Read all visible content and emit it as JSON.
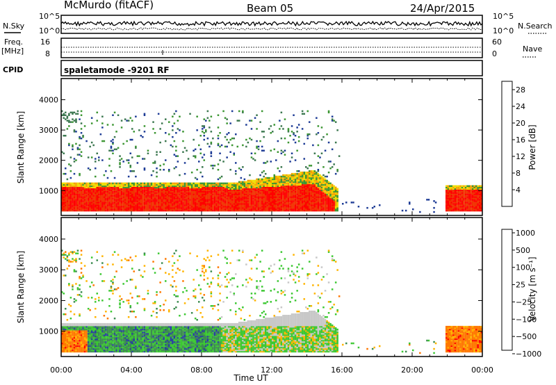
{
  "header": {
    "station": "McMurdo (fitACF)",
    "beam": "Beam 05",
    "date": "24/Apr/2015"
  },
  "top_panels": {
    "nsky_label": "N.Sky",
    "nsearch_label": "N.Search",
    "noise_ticks": [
      "10^5",
      "10^0"
    ],
    "freq_label": "Freq.",
    "freq_unit": "[MHz]",
    "freq_ticks": [
      "16",
      "8"
    ],
    "nave_label": "Nave",
    "nave_ticks": [
      "60",
      "0"
    ],
    "cpid_label": "CPID",
    "cpid_text": "spaletamode -9201 RF"
  },
  "colors": {
    "power": [
      "#0000ff",
      "#1e3c96",
      "#3c7850",
      "#3c9632",
      "#f0dc00",
      "#f5a000",
      "#f06e00",
      "#f03200",
      "#ff0000"
    ],
    "velocity": [
      "#ff0000",
      "#ff7800",
      "#ffb400",
      "#c8c8c8",
      "#3cc832",
      "#3c8c50",
      "#2840a0"
    ]
  },
  "chart_data": [
    {
      "type": "heatmap",
      "name": "power",
      "ylabel": "Slant Range [km]",
      "xlabel": "Time UT",
      "x_ticks": [
        "00:00",
        "04:00",
        "08:00",
        "12:00",
        "16:00",
        "20:00",
        "00:00"
      ],
      "y_ticks": [
        "1000",
        "2000",
        "3000",
        "4000"
      ],
      "ylim": [
        180,
        4700
      ],
      "colorbar": {
        "label": "Power [dB]",
        "ticks": [
          "4",
          "8",
          "12",
          "16",
          "20",
          "24",
          "28"
        ],
        "range": [
          0,
          30
        ]
      }
    },
    {
      "type": "heatmap",
      "name": "velocity",
      "ylabel": "Slant Range [km]",
      "xlabel": "Time UT",
      "x_ticks": [
        "00:00",
        "04:00",
        "08:00",
        "12:00",
        "16:00",
        "20:00",
        "00:00"
      ],
      "y_ticks": [
        "1000",
        "2000",
        "3000",
        "4000"
      ],
      "ylim": [
        180,
        4700
      ],
      "colorbar": {
        "label": "Velocity [m s⁻¹]",
        "ticks": [
          "1000",
          "500",
          "100",
          "25",
          "−25",
          "−100",
          "−500",
          "−1000"
        ]
      }
    }
  ]
}
